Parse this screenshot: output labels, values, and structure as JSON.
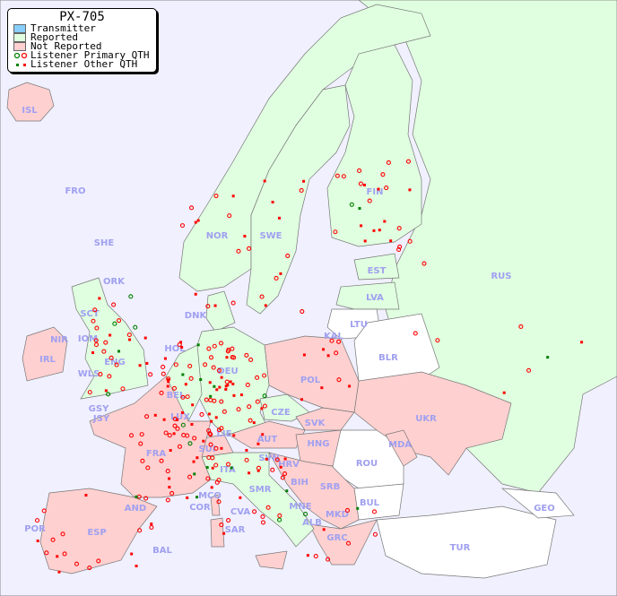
{
  "legend": {
    "title": "PX-705",
    "items": [
      {
        "label": "Transmitter",
        "color": "#87cefa"
      },
      {
        "label": "Reported",
        "color": "#e0ffe0"
      },
      {
        "label": "Not Reported",
        "color": "#ffd0d0"
      },
      {
        "label": "Listener Primary QTH",
        "icon": "circle-marker",
        "colors": [
          "#008000",
          "#ff0000"
        ]
      },
      {
        "label": "Listener Other QTH",
        "icon": "square-marker",
        "colors": [
          "#008000",
          "#ff0000"
        ]
      }
    ]
  },
  "colors": {
    "sea": "#f0f0ff",
    "reported": "#e0ffe0",
    "not_reported": "#ffd0d0",
    "label": "#a0a0f0"
  },
  "countries": [
    "ISL",
    "FRO",
    "SHE",
    "ORK",
    "NOR",
    "SWE",
    "FIN",
    "RUS",
    "EST",
    "LVA",
    "LTU",
    "KAL",
    "BLR",
    "POL",
    "DNK",
    "HOL",
    "DEU",
    "BEL",
    "LUX",
    "CZE",
    "SVK",
    "UKR",
    "MDA",
    "HNG",
    "AUT",
    "SUI",
    "LIE",
    "FRA",
    "SVN",
    "HRV",
    "ROU",
    "ITA",
    "SMR",
    "BIH",
    "SRB",
    "BUL",
    "MNE",
    "MKD",
    "ALB",
    "GRC",
    "TUR",
    "GEO",
    "CVA",
    "MCO",
    "COR",
    "SAR",
    "AND",
    "ESP",
    "POR",
    "BAL",
    "GSY",
    "JSY",
    "IRL",
    "NIR",
    "IOM",
    "SCT",
    "WLS",
    "ENG"
  ]
}
